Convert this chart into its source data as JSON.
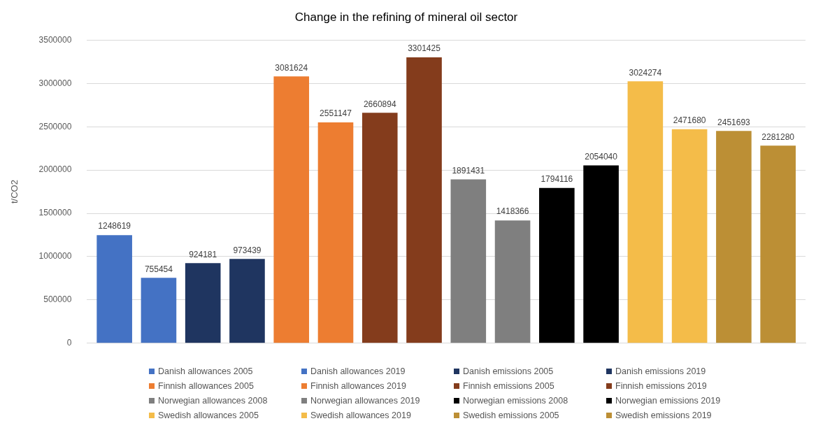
{
  "chart_data": {
    "type": "bar",
    "title": "Change in the refining of mineral oil sector",
    "ylabel": "t/CO2",
    "categories": [
      null
    ],
    "series": [
      {
        "name": "Danish allowances 2005",
        "color": "#4472c4",
        "values": [
          1248619
        ]
      },
      {
        "name": "Danish allowances 2019",
        "color": "#4472c4",
        "values": [
          755454
        ]
      },
      {
        "name": "Danish emissions 2005",
        "color": "#1f3560",
        "values": [
          924181
        ]
      },
      {
        "name": "Danish emissions 2019",
        "color": "#1f3560",
        "values": [
          973439
        ]
      },
      {
        "name": "Finnish allowances 2005",
        "color": "#ed7d31",
        "values": [
          3081624
        ]
      },
      {
        "name": "Finnish allowances 2019",
        "color": "#ed7d31",
        "values": [
          2551147
        ]
      },
      {
        "name": "Finnish emissions 2005",
        "color": "#843c1c",
        "values": [
          2660894
        ]
      },
      {
        "name": "Finnish emissions 2019",
        "color": "#843c1c",
        "values": [
          3301425
        ]
      },
      {
        "name": "Norwegian allowances 2008",
        "color": "#7f7f7f",
        "values": [
          1891431
        ]
      },
      {
        "name": "Norwegian allowances 2019",
        "color": "#7f7f7f",
        "values": [
          1418366
        ]
      },
      {
        "name": "Norwegian emissions 2008",
        "color": "#000000",
        "values": [
          1794116
        ]
      },
      {
        "name": "Norwegian emissions 2019",
        "color": "#000000",
        "values": [
          2054040
        ]
      },
      {
        "name": "Swedish allowances 2005",
        "color": "#f4bc49",
        "values": [
          3024274
        ]
      },
      {
        "name": "Swedish allowances 2019",
        "color": "#f4bc49",
        "values": [
          2471680
        ]
      },
      {
        "name": "Swedish emissions 2005",
        "color": "#bc8f35",
        "values": [
          2451693
        ]
      },
      {
        "name": "Swedish emissions 2019",
        "color": "#bc8f35",
        "values": [
          2281280
        ]
      }
    ],
    "ylim": [
      0,
      3500000
    ],
    "yticks": [
      0,
      500000,
      1000000,
      1500000,
      2000000,
      2500000,
      3000000,
      3500000
    ],
    "grid": "y",
    "legend": "bottom",
    "data_labels": true
  }
}
